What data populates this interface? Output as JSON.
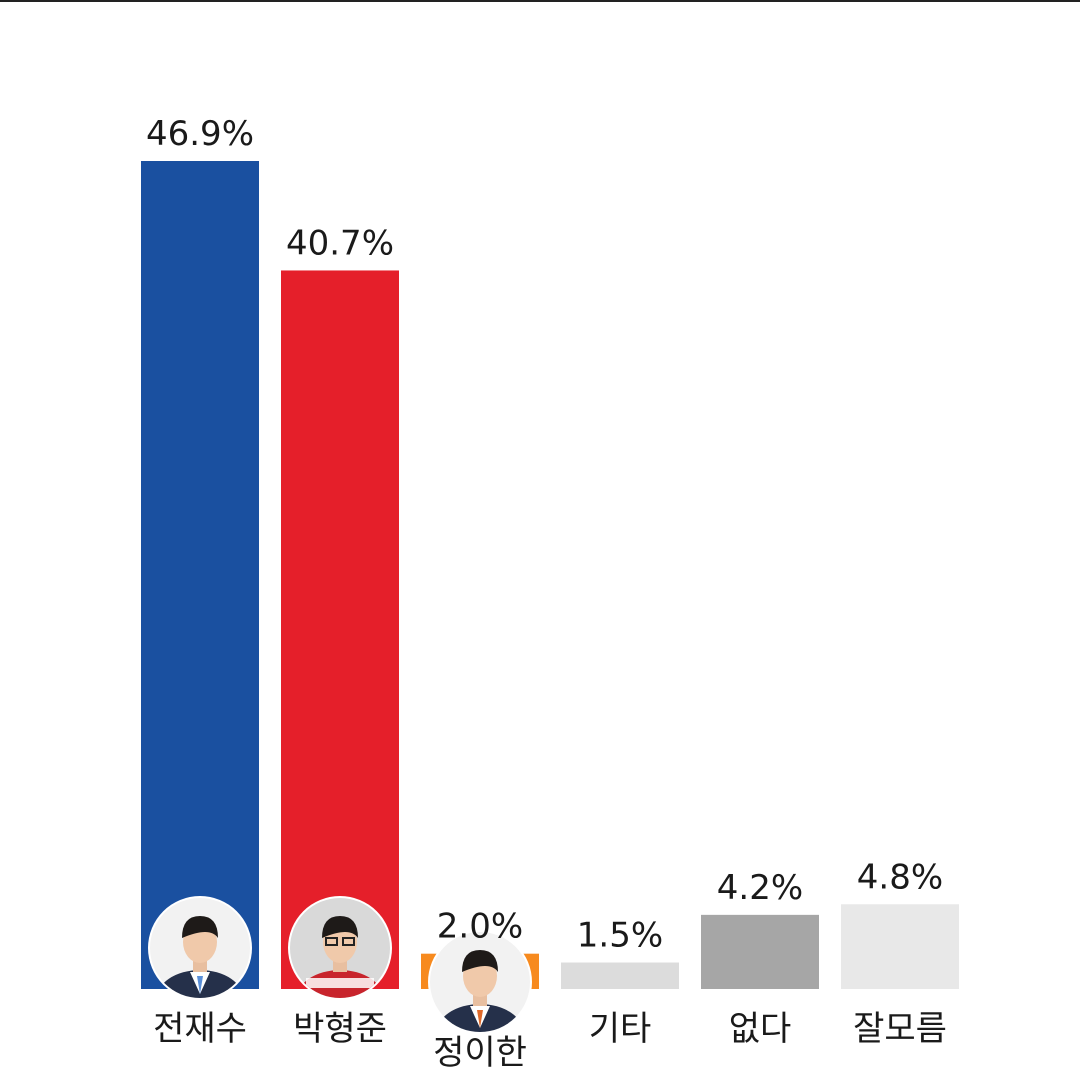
{
  "chart_data": {
    "type": "bar",
    "categories": [
      "전재수",
      "박형준",
      "정이한",
      "기타",
      "없다",
      "잘모름"
    ],
    "values": [
      46.9,
      40.7,
      2.0,
      1.5,
      4.2,
      4.8
    ],
    "value_labels": [
      "46.9%",
      "40.7%",
      "2.0%",
      "1.5%",
      "4.2%",
      "4.8%"
    ],
    "colors": [
      "#1a50a0",
      "#e51f2a",
      "#f78a1e",
      "#dcdcdc",
      "#a6a6a6",
      "#e8e8e8"
    ],
    "avatars": [
      "candidate-photo",
      "candidate-photo",
      "candidate-photo",
      null,
      null,
      null
    ],
    "title": "",
    "xlabel": "",
    "ylabel": "",
    "ylim": [
      0,
      46.9
    ],
    "grid": false,
    "legend": "none"
  }
}
